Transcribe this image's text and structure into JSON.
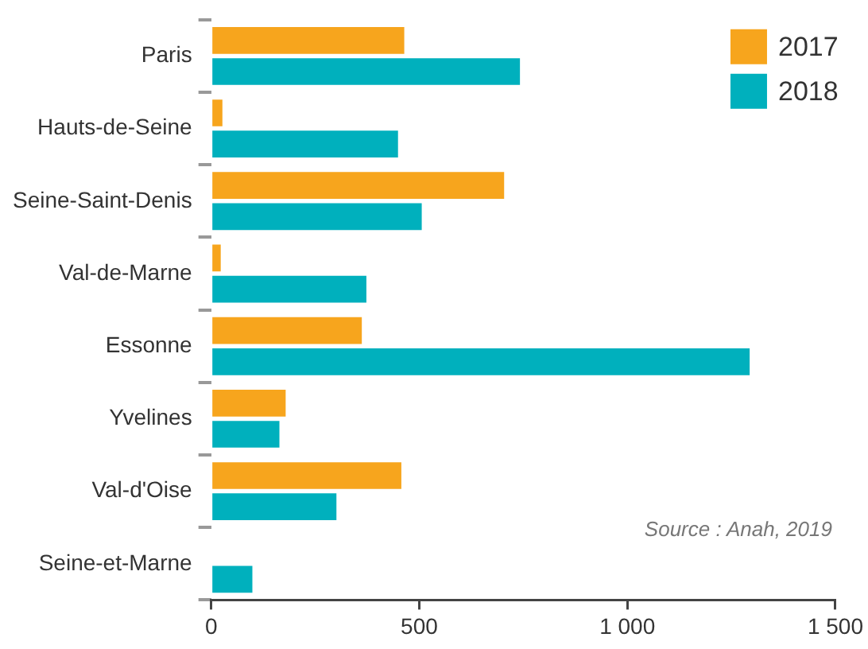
{
  "chart_data": {
    "type": "bar",
    "orientation": "horizontal",
    "categories": [
      "Paris",
      "Hauts-de-Seine",
      "Seine-Saint-Denis",
      "Val-de-Marne",
      "Essonne",
      "Yvelines",
      "Val-d'Oise",
      "Seine-et-Marne"
    ],
    "series": [
      {
        "name": "2017",
        "color": "#f7a51d",
        "values": [
          464,
          27,
          704,
          23,
          362,
          179,
          457,
          null
        ]
      },
      {
        "name": "2018",
        "color": "#00b0bd",
        "values": [
          742,
          449,
          506,
          373,
          1294,
          164,
          301,
          99
        ]
      }
    ],
    "xlim": [
      0,
      1500
    ],
    "xticks": [
      0,
      500,
      {
        "value": 1000,
        "label": "1 000"
      },
      {
        "value": 1500,
        "label": "1 500"
      }
    ],
    "grid": false,
    "legend": "top right",
    "annotations": [
      "Source : Anah, 2019"
    ]
  }
}
